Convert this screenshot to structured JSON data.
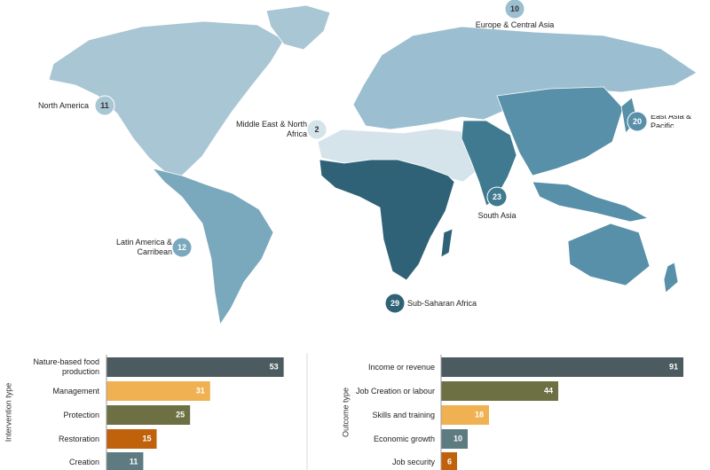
{
  "map": {
    "regions": [
      {
        "name": "North America",
        "value": 11,
        "color": "#a9c6d5"
      },
      {
        "name": "Latin America & Carribean",
        "value": 12,
        "color": "#7aa8bd"
      },
      {
        "name": "Europe & Central Asia",
        "value": 10,
        "color": "#9bbfd0"
      },
      {
        "name": "Middle East & North Africa",
        "value": 2,
        "color": "#d5e3ea"
      },
      {
        "name": "Sub-Saharan Africa",
        "value": 29,
        "color": "#2f6277"
      },
      {
        "name": "South Asia",
        "value": 23,
        "color": "#3f7a90"
      },
      {
        "name": "East Asia & Pacific",
        "value": 20,
        "color": "#5790a8"
      }
    ]
  },
  "chart_data": [
    {
      "type": "bar",
      "orientation": "horizontal",
      "y_label": "Intervention type",
      "categories": [
        "Nature-based food production",
        "Management",
        "Protection",
        "Restoration",
        "Creation"
      ],
      "values": [
        53,
        31,
        25,
        15,
        11
      ],
      "colors": [
        "#4b5b5f",
        "#f0b152",
        "#6c7042",
        "#c0620c",
        "#5f7b82"
      ],
      "xlim": [
        0,
        60
      ]
    },
    {
      "type": "bar",
      "orientation": "horizontal",
      "y_label": "Outcome type",
      "categories": [
        "Income or revenue",
        "Job Creation or labour",
        "Skills and training",
        "Economic growth",
        "Job security"
      ],
      "values": [
        91,
        44,
        18,
        10,
        6
      ],
      "colors": [
        "#4b5b5f",
        "#6c7042",
        "#f0b152",
        "#5f7b82",
        "#c0620c"
      ],
      "xlim": [
        0,
        100
      ]
    }
  ]
}
